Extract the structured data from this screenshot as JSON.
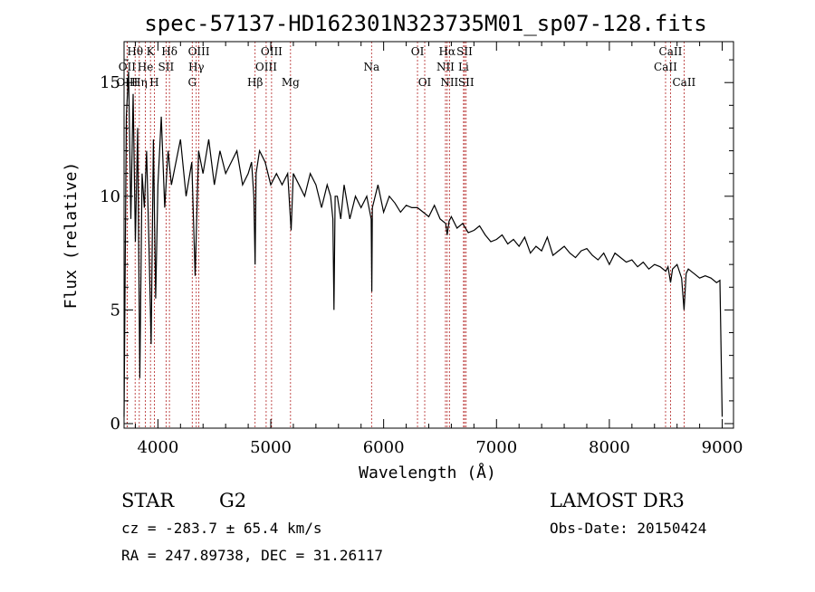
{
  "chart_data": {
    "type": "line",
    "title": "spec-57137-HD162301N323735M01_sp07-128.fits",
    "xlabel": "Wavelength (Å)",
    "ylabel": "Flux (relative)",
    "xlim": [
      3700,
      9100
    ],
    "ylim": [
      -0.2,
      16.8
    ],
    "xticks": [
      4000,
      5000,
      6000,
      7000,
      8000,
      9000
    ],
    "yticks": [
      0,
      5,
      10,
      15
    ],
    "grid": false,
    "series": [
      {
        "name": "flux",
        "x": [
          3700,
          3720,
          3740,
          3760,
          3780,
          3800,
          3820,
          3840,
          3860,
          3880,
          3900,
          3920,
          3940,
          3960,
          3980,
          4000,
          4030,
          4060,
          4090,
          4120,
          4160,
          4200,
          4250,
          4300,
          4330,
          4360,
          4400,
          4450,
          4500,
          4550,
          4600,
          4650,
          4700,
          4750,
          4800,
          4830,
          4850,
          4861,
          4870,
          4900,
          4950,
          5000,
          5050,
          5100,
          5150,
          5180,
          5200,
          5250,
          5300,
          5350,
          5400,
          5450,
          5500,
          5530,
          5550,
          5560,
          5570,
          5590,
          5620,
          5650,
          5700,
          5750,
          5800,
          5850,
          5890,
          5895,
          5900,
          5950,
          6000,
          6050,
          6100,
          6150,
          6200,
          6250,
          6300,
          6350,
          6400,
          6450,
          6500,
          6550,
          6563,
          6580,
          6600,
          6650,
          6700,
          6750,
          6800,
          6850,
          6900,
          6950,
          7000,
          7050,
          7100,
          7150,
          7200,
          7250,
          7300,
          7350,
          7400,
          7450,
          7500,
          7550,
          7600,
          7650,
          7700,
          7750,
          7800,
          7850,
          7900,
          7950,
          8000,
          8050,
          8100,
          8150,
          8200,
          8250,
          8300,
          8350,
          8400,
          8450,
          8500,
          8520,
          8542,
          8560,
          8600,
          8640,
          8662,
          8680,
          8700,
          8750,
          8800,
          8850,
          8900,
          8950,
          8980,
          9000
        ],
        "values": [
          0.3,
          13.5,
          15.5,
          9.0,
          14.5,
          8.0,
          13.0,
          2.0,
          11.0,
          9.5,
          12.0,
          8.0,
          3.5,
          12.5,
          5.5,
          10.5,
          13.5,
          9.5,
          12.0,
          10.5,
          11.5,
          12.5,
          10.0,
          11.5,
          6.5,
          12.0,
          11.0,
          12.5,
          10.5,
          12.0,
          11.0,
          11.5,
          12.0,
          10.5,
          11.0,
          11.5,
          10.0,
          7.0,
          11.0,
          12.0,
          11.5,
          10.5,
          11.0,
          10.5,
          11.0,
          8.5,
          11.0,
          10.5,
          10.0,
          11.0,
          10.5,
          9.5,
          10.5,
          10.0,
          9.0,
          5.0,
          10.0,
          10.0,
          9.0,
          10.5,
          9.0,
          10.0,
          9.5,
          10.0,
          9.0,
          5.8,
          9.5,
          10.5,
          9.3,
          10.0,
          9.7,
          9.3,
          9.6,
          9.5,
          9.5,
          9.3,
          9.1,
          9.6,
          9.0,
          8.8,
          8.3,
          8.9,
          9.1,
          8.6,
          8.8,
          8.4,
          8.5,
          8.7,
          8.3,
          8.0,
          8.1,
          8.3,
          7.9,
          8.1,
          7.8,
          8.2,
          7.5,
          7.8,
          7.6,
          8.2,
          7.4,
          7.6,
          7.8,
          7.5,
          7.3,
          7.6,
          7.7,
          7.4,
          7.2,
          7.5,
          7.0,
          7.5,
          7.3,
          7.1,
          7.2,
          6.9,
          7.1,
          6.8,
          7.0,
          6.9,
          6.7,
          6.9,
          6.2,
          6.8,
          7.0,
          6.4,
          5.0,
          6.6,
          6.8,
          6.6,
          6.4,
          6.5,
          6.4,
          6.2,
          6.3,
          0.3
        ]
      }
    ],
    "spectral_lines": [
      {
        "label": "Hθ",
        "wavelength": 3798,
        "row": 1
      },
      {
        "label": "K",
        "wavelength": 3934,
        "row": 1
      },
      {
        "label": "Hδ",
        "wavelength": 4102,
        "row": 1
      },
      {
        "label": "OIII",
        "wavelength": 4363,
        "row": 1
      },
      {
        "label": "OIII",
        "wavelength": 5007,
        "row": 1
      },
      {
        "label": "OI",
        "wavelength": 6300,
        "row": 1
      },
      {
        "label": "Hα",
        "wavelength": 6563,
        "row": 1
      },
      {
        "label": "SII",
        "wavelength": 6717,
        "row": 1
      },
      {
        "label": "CaII",
        "wavelength": 8542,
        "row": 1
      },
      {
        "label": "OII",
        "wavelength": 3727,
        "row": 2
      },
      {
        "label": "He",
        "wavelength": 3889,
        "row": 2
      },
      {
        "label": "SII",
        "wavelength": 4072,
        "row": 2
      },
      {
        "label": "Hγ",
        "wavelength": 4340,
        "row": 2
      },
      {
        "label": "OIII",
        "wavelength": 4959,
        "row": 2
      },
      {
        "label": "Na",
        "wavelength": 5893,
        "row": 2
      },
      {
        "label": "NII",
        "wavelength": 6548,
        "row": 2
      },
      {
        "label": "Li",
        "wavelength": 6708,
        "row": 2
      },
      {
        "label": "CaII",
        "wavelength": 8498,
        "row": 2
      },
      {
        "label": "OIII",
        "wavelength": 3727,
        "row": 3
      },
      {
        "label": "Hη",
        "wavelength": 3835,
        "row": 3
      },
      {
        "label": "H",
        "wavelength": 3968,
        "row": 3
      },
      {
        "label": "G",
        "wavelength": 4304,
        "row": 3
      },
      {
        "label": "Hβ",
        "wavelength": 4861,
        "row": 3
      },
      {
        "label": "Mg",
        "wavelength": 5175,
        "row": 3
      },
      {
        "label": "OI",
        "wavelength": 6364,
        "row": 3
      },
      {
        "label": "NII",
        "wavelength": 6583,
        "row": 3
      },
      {
        "label": "SII",
        "wavelength": 6731,
        "row": 3
      },
      {
        "label": "CaII",
        "wavelength": 8662,
        "row": 3
      }
    ]
  },
  "info": {
    "class": "STAR",
    "subclass": "G2",
    "survey": "LAMOST DR3",
    "cz": "cz = -283.7 ± 65.4 km/s",
    "obs_date": "Obs-Date: 20150424",
    "coords": "RA = 247.89738, DEC =  31.26117"
  },
  "colors": {
    "line_marker": "#b22222",
    "spectrum": "#000000",
    "axes": "#000000"
  }
}
